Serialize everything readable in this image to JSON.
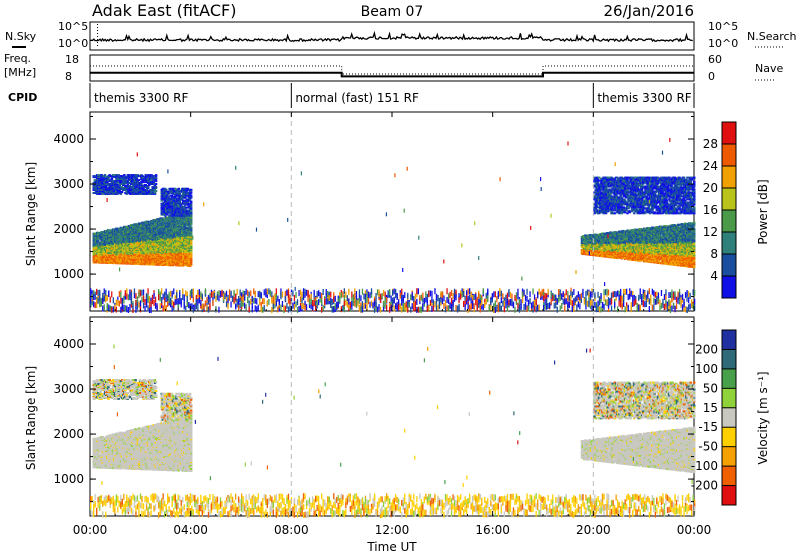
{
  "header": {
    "station": "Adak East (fitACF)",
    "beam": "Beam 07",
    "date": "26/Jan/2016"
  },
  "left_labels": {
    "nsky": "N.Sky",
    "nsky_top": "10^5",
    "nsky_bottom": "10^0",
    "freq": "Freq.",
    "freq_unit": "[MHz]",
    "freq_top": "18",
    "freq_bottom": "8",
    "cpid": "CPID"
  },
  "right_labels": {
    "nsearch": "N.Search",
    "nsearch_top": "10^5",
    "nsearch_bottom": "10^0",
    "nave": "Nave",
    "nave_top": "60",
    "nave_bottom": "0"
  },
  "cpid_segments": [
    {
      "label": "themis 3300 RF",
      "start_hour": 0
    },
    {
      "label": "normal (fast) 151 RF",
      "start_hour": 8
    },
    {
      "label": "themis 3300 RF",
      "start_hour": 20
    }
  ],
  "x_axis": {
    "label": "Time UT",
    "ticks": [
      "00:00",
      "04:00",
      "08:00",
      "12:00",
      "16:00",
      "20:00",
      "00:00"
    ],
    "range_hours": [
      0,
      24
    ]
  },
  "y_axis": {
    "label": "Slant Range [km]",
    "ticks": [
      "1000",
      "2000",
      "3000",
      "4000"
    ],
    "range_km": [
      180,
      4600
    ]
  },
  "power_colorbar": {
    "label": "Power [dB]",
    "ticks": [
      "4",
      "8",
      "12",
      "16",
      "20",
      "24",
      "28"
    ],
    "colors": [
      "#1010e6",
      "#1a4fa0",
      "#2f7f7a",
      "#4a9a4a",
      "#b8c41a",
      "#f0a000",
      "#ee5a00",
      "#e01010"
    ]
  },
  "velocity_colorbar": {
    "label": "Velocity [m s⁻¹]",
    "ticks": [
      "200",
      "100",
      "50",
      "15",
      "-15",
      "-50",
      "-100",
      "-200"
    ],
    "colors": [
      "#2030a0",
      "#2f6a78",
      "#49a04a",
      "#8fd23a",
      "#c8c8c0",
      "#ffd000",
      "#f4a000",
      "#f06000",
      "#e01010"
    ]
  },
  "chart_data": [
    {
      "type": "heatmap",
      "name": "power",
      "title": "Adak East (fitACF) Beam 07 26/Jan/2016",
      "xlabel": "Time UT",
      "ylabel": "Slant Range [km]",
      "xlim": [
        0,
        24
      ],
      "ylim": [
        180,
        4600
      ],
      "colorbar_label": "Power [dB]",
      "echo_regions": [
        {
          "t_start": 0.1,
          "t_end": 4.0,
          "range_min": 1200,
          "range_max": 2200,
          "dominant_power_db": 16
        },
        {
          "t_start": 0.1,
          "t_end": 4.0,
          "range_min": 2800,
          "range_max": 3200,
          "dominant_power_db": 6
        },
        {
          "t_start": 19.5,
          "t_end": 24.0,
          "range_min": 1200,
          "range_max": 2100,
          "dominant_power_db": 16
        },
        {
          "t_start": 20.0,
          "t_end": 24.0,
          "range_min": 2400,
          "range_max": 3100,
          "dominant_power_db": 6
        },
        {
          "t_start": 0.0,
          "t_end": 24.0,
          "range_min": 200,
          "range_max": 600,
          "dominant_power_db": 10
        }
      ]
    },
    {
      "type": "heatmap",
      "name": "velocity",
      "xlabel": "Time UT",
      "ylabel": "Slant Range [km]",
      "xlim": [
        0,
        24
      ],
      "ylim": [
        180,
        4600
      ],
      "colorbar_label": "Velocity [m s⁻¹]",
      "echo_regions": [
        {
          "t_start": 0.1,
          "t_end": 4.0,
          "range_min": 1300,
          "range_max": 2200,
          "dominant_velocity": 0
        },
        {
          "t_start": 0.1,
          "t_end": 4.0,
          "range_min": 2800,
          "range_max": 3200,
          "dominant_velocity": 20
        },
        {
          "t_start": 19.5,
          "t_end": 24.0,
          "range_min": 1200,
          "range_max": 2100,
          "dominant_velocity": 0
        },
        {
          "t_start": 20.0,
          "t_end": 24.0,
          "range_min": 2400,
          "range_max": 3100,
          "dominant_velocity": 20
        },
        {
          "t_start": 0.0,
          "t_end": 24.0,
          "range_min": 200,
          "range_max": 450,
          "dominant_velocity": -30
        }
      ]
    },
    {
      "type": "line",
      "name": "frequency",
      "xlabel": "Time UT",
      "ylabel": "Freq. [MHz]",
      "ylim": [
        8,
        18
      ],
      "series": [
        {
          "x": [
            0,
            10,
            10,
            18,
            18,
            24
          ],
          "values": [
            11,
            11,
            9.5,
            9.5,
            11,
            11
          ]
        }
      ]
    }
  ]
}
